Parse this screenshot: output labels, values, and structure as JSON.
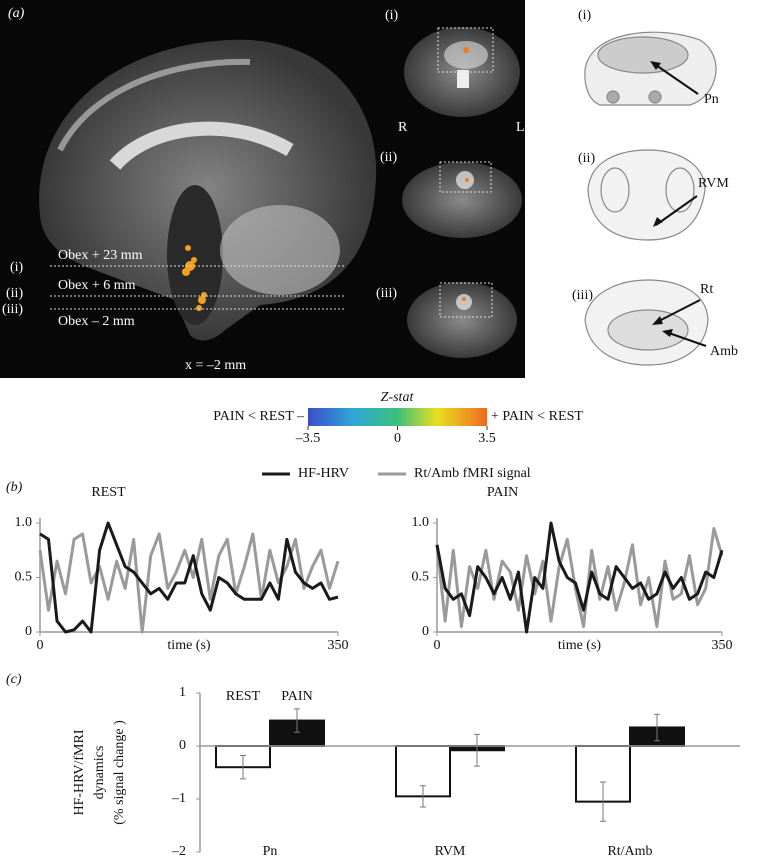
{
  "panel_a": {
    "label": "(a)",
    "sagittal": {
      "levels": [
        {
          "roman": "(i)",
          "label": "Obex + 23 mm"
        },
        {
          "roman": "(ii)",
          "label": "Obex + 6 mm"
        },
        {
          "roman": "(iii)",
          "label": "Obex – 2 mm"
        }
      ],
      "slice": "x = –2 mm"
    },
    "axial": {
      "romans": [
        "(i)",
        "(ii)",
        "(iii)"
      ],
      "left": "R",
      "right": "L"
    },
    "atlas": {
      "romans": [
        "(i)",
        "(ii)",
        "(iii)"
      ],
      "labels": [
        "Pn",
        "RVM",
        "Rt",
        "Amb"
      ]
    }
  },
  "colorbar": {
    "title": "Z-stat",
    "left": "PAIN < REST –",
    "right": "+ PAIN < REST",
    "xlim": [
      -3.5,
      3.5
    ],
    "ticks": [
      {
        "value": -3.5,
        "label": "–3.5"
      },
      0,
      3.5
    ]
  },
  "panel_labels": {
    "b": "(b)",
    "c": "(c)"
  },
  "chart_data": [
    {
      "type": "line",
      "title": "REST",
      "xlabel": "time (s)",
      "x": [
        0,
        10,
        20,
        30,
        40,
        50,
        60,
        70,
        80,
        90,
        100,
        110,
        120,
        130,
        140,
        150,
        160,
        170,
        180,
        190,
        200,
        210,
        220,
        230,
        240,
        250,
        260,
        270,
        280,
        290,
        300,
        310,
        320,
        330,
        340,
        350
      ],
      "xlim": [
        0,
        350
      ],
      "xticks": [
        0,
        350
      ],
      "ylim": [
        0,
        1
      ],
      "yticks": [
        0,
        0.5,
        {
          "value": 1,
          "label": "1.0"
        }
      ],
      "series": [
        {
          "name": "HF-HRV",
          "color": "#1a1a1a",
          "values": [
            0.9,
            0.85,
            0.1,
            0.0,
            0.02,
            0.1,
            0.0,
            0.75,
            1.0,
            0.8,
            0.6,
            0.55,
            0.45,
            0.35,
            0.4,
            0.3,
            0.45,
            0.45,
            0.7,
            0.35,
            0.2,
            0.5,
            0.45,
            0.35,
            0.3,
            0.3,
            0.3,
            0.45,
            0.3,
            0.85,
            0.55,
            0.45,
            0.4,
            0.45,
            0.3,
            0.32
          ]
        },
        {
          "name": "Rt/Amb fMRI signal",
          "color": "#9a9a9a",
          "values": [
            0.75,
            0.2,
            0.65,
            0.35,
            0.85,
            0.9,
            0.45,
            0.6,
            0.3,
            0.65,
            0.4,
            0.85,
            0.0,
            0.7,
            0.9,
            0.4,
            0.55,
            0.75,
            0.5,
            0.85,
            0.3,
            0.7,
            0.85,
            0.35,
            0.6,
            0.9,
            0.3,
            0.75,
            0.45,
            0.6,
            0.85,
            0.4,
            0.6,
            0.75,
            0.4,
            0.65
          ]
        }
      ]
    },
    {
      "type": "line",
      "title": "PAIN",
      "xlabel": "time (s)",
      "x": [
        0,
        10,
        20,
        30,
        40,
        50,
        60,
        70,
        80,
        90,
        100,
        110,
        120,
        130,
        140,
        150,
        160,
        170,
        180,
        190,
        200,
        210,
        220,
        230,
        240,
        250,
        260,
        270,
        280,
        290,
        300,
        310,
        320,
        330,
        340,
        350
      ],
      "xlim": [
        0,
        350
      ],
      "xticks": [
        0,
        350
      ],
      "ylim": [
        0,
        1
      ],
      "yticks": [
        0,
        0.5,
        {
          "value": 1,
          "label": "1.0"
        }
      ],
      "series": [
        {
          "color": "#1a1a1a",
          "values": [
            0.8,
            0.4,
            0.3,
            0.35,
            0.15,
            0.6,
            0.5,
            0.35,
            0.5,
            0.3,
            0.55,
            0.0,
            0.5,
            0.4,
            1.0,
            0.65,
            0.5,
            0.45,
            0.2,
            0.55,
            0.35,
            0.3,
            0.6,
            0.5,
            0.4,
            0.45,
            0.3,
            0.35,
            0.55,
            0.4,
            0.5,
            0.3,
            0.35,
            0.55,
            0.5,
            0.75
          ]
        },
        {
          "color": "#9a9a9a",
          "values": [
            0.8,
            0.1,
            0.75,
            0.05,
            0.6,
            0.4,
            0.75,
            0.3,
            0.65,
            0.55,
            0.2,
            0.7,
            0.35,
            0.65,
            0.1,
            0.6,
            0.85,
            0.4,
            0.05,
            0.75,
            0.3,
            0.6,
            0.2,
            0.45,
            0.8,
            0.25,
            0.5,
            0.05,
            0.65,
            0.3,
            0.35,
            0.7,
            0.25,
            0.4,
            0.95,
            0.7
          ]
        }
      ]
    },
    {
      "type": "bar",
      "ylabel": [
        "HF-HRV/fMRI",
        "dynamics",
        "(% signal change )"
      ],
      "categories": [
        "Pn",
        "RVM",
        "Rt/Amb"
      ],
      "ylim": [
        -2,
        1
      ],
      "yticks": [
        {
          "value": -2,
          "label": "–2"
        },
        {
          "value": -1,
          "label": "–1"
        },
        0,
        1
      ],
      "series": [
        {
          "name": "REST",
          "color": "#ffffff",
          "values": [
            -0.4,
            -0.95,
            -1.05
          ],
          "errors": [
            0.22,
            0.2,
            0.37
          ]
        },
        {
          "name": "PAIN",
          "color": "#111111",
          "values": [
            0.48,
            -0.08,
            0.35
          ],
          "errors": [
            0.22,
            0.3,
            0.25
          ]
        }
      ]
    }
  ]
}
